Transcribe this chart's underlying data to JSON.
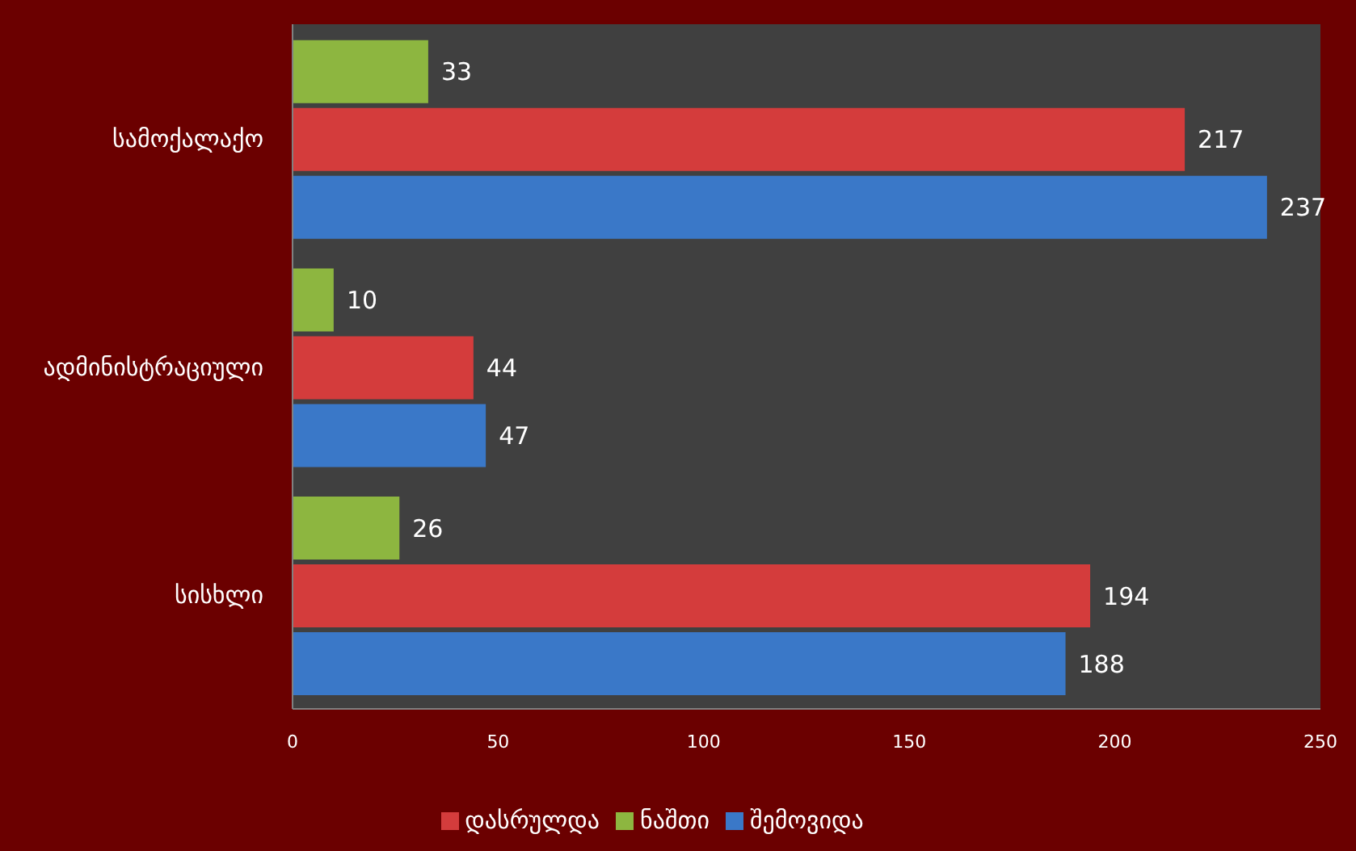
{
  "chart_data": {
    "type": "bar",
    "orientation": "horizontal",
    "categories": [
      "სამოქალაქო",
      "ადმინისტრაციული",
      "სისხლი"
    ],
    "series": [
      {
        "name": "ნაშთი",
        "color": "#8db640",
        "values": [
          33,
          10,
          26
        ]
      },
      {
        "name": "დასრულდა",
        "color": "#d43c3c",
        "values": [
          217,
          44,
          194
        ]
      },
      {
        "name": "შემოვიდა",
        "color": "#3a78c8",
        "values": [
          237,
          47,
          188
        ]
      }
    ],
    "xlim": [
      0,
      250
    ],
    "xticks": [
      0,
      50,
      100,
      150,
      200,
      250
    ],
    "grid": false,
    "legend": "bottom",
    "data_labels": true
  }
}
